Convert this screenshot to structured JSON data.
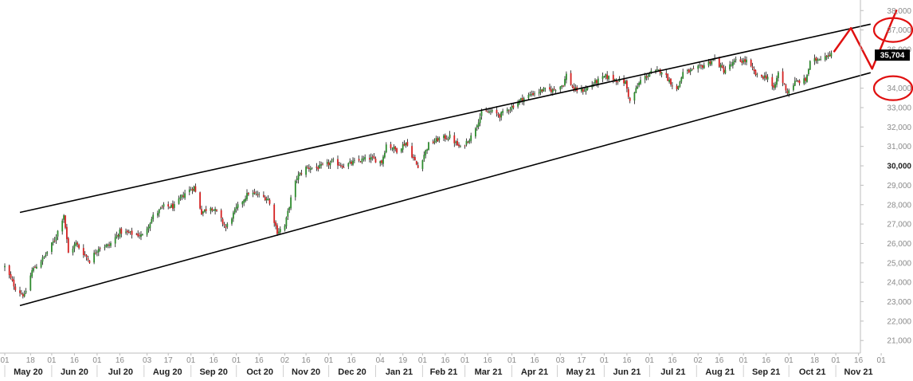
{
  "chart_data": {
    "type": "candlestick",
    "title": "",
    "xlabel": "",
    "ylabel": "",
    "ylim": [
      20500,
      38200
    ],
    "date_range": [
      "2020-05-01",
      "2021-11-30"
    ],
    "y_ticks": [
      {
        "value": 21000,
        "label": "21,000"
      },
      {
        "value": 22000,
        "label": "22,000"
      },
      {
        "value": 23000,
        "label": "23,000"
      },
      {
        "value": 24000,
        "label": "24,000"
      },
      {
        "value": 25000,
        "label": "25,000"
      },
      {
        "value": 26000,
        "label": "26,000"
      },
      {
        "value": 27000,
        "label": "27,000"
      },
      {
        "value": 28000,
        "label": "28,000"
      },
      {
        "value": 29000,
        "label": "29,000"
      },
      {
        "value": 30000,
        "label": "30,000",
        "major": true
      },
      {
        "value": 31000,
        "label": "31,000"
      },
      {
        "value": 32000,
        "label": "32,000"
      },
      {
        "value": 33000,
        "label": "33,000"
      },
      {
        "value": 34000,
        "label": "34,000"
      },
      {
        "value": 36000,
        "label": "36,000"
      },
      {
        "value": 37000,
        "label": "37,000"
      },
      {
        "value": 38000,
        "label": "38,000"
      }
    ],
    "last_value": {
      "value": 35704,
      "label": "35,704"
    },
    "months": [
      {
        "label": "May 20",
        "date": "2020-05-01"
      },
      {
        "label": "Jun 20",
        "date": "2020-06-01"
      },
      {
        "label": "Jul 20",
        "date": "2020-07-01"
      },
      {
        "label": "Aug 20",
        "date": "2020-08-01"
      },
      {
        "label": "Sep 20",
        "date": "2020-09-01"
      },
      {
        "label": "Oct 20",
        "date": "2020-10-01"
      },
      {
        "label": "Nov 20",
        "date": "2020-11-01"
      },
      {
        "label": "Dec 20",
        "date": "2020-12-01"
      },
      {
        "label": "Jan 21",
        "date": "2021-01-01"
      },
      {
        "label": "Feb 21",
        "date": "2021-02-01"
      },
      {
        "label": "Mar 21",
        "date": "2021-03-01"
      },
      {
        "label": "Apr 21",
        "date": "2021-04-01"
      },
      {
        "label": "May 21",
        "date": "2021-05-01"
      },
      {
        "label": "Jun 21",
        "date": "2021-06-01"
      },
      {
        "label": "Jul 21",
        "date": "2021-07-01"
      },
      {
        "label": "Aug 21",
        "date": "2021-08-01"
      },
      {
        "label": "Sep 21",
        "date": "2021-09-01"
      },
      {
        "label": "Oct 21",
        "date": "2021-10-01"
      },
      {
        "label": "Nov 21",
        "date": "2021-11-01"
      }
    ],
    "day_ticks": [
      {
        "label": "01",
        "date": "2020-05-01"
      },
      {
        "label": "18",
        "date": "2020-05-18"
      },
      {
        "label": "01",
        "date": "2020-06-01"
      },
      {
        "label": "16",
        "date": "2020-06-16"
      },
      {
        "label": "01",
        "date": "2020-07-01"
      },
      {
        "label": "16",
        "date": "2020-07-16"
      },
      {
        "label": "03",
        "date": "2020-08-03"
      },
      {
        "label": "17",
        "date": "2020-08-17"
      },
      {
        "label": "01",
        "date": "2020-09-01"
      },
      {
        "label": "16",
        "date": "2020-09-16"
      },
      {
        "label": "01",
        "date": "2020-10-01"
      },
      {
        "label": "16",
        "date": "2020-10-16"
      },
      {
        "label": "02",
        "date": "2020-11-02"
      },
      {
        "label": "16",
        "date": "2020-11-16"
      },
      {
        "label": "01",
        "date": "2020-12-01"
      },
      {
        "label": "16",
        "date": "2020-12-16"
      },
      {
        "label": "04",
        "date": "2021-01-04"
      },
      {
        "label": "19",
        "date": "2021-01-19"
      },
      {
        "label": "01",
        "date": "2021-02-01"
      },
      {
        "label": "16",
        "date": "2021-02-16"
      },
      {
        "label": "01",
        "date": "2021-03-01"
      },
      {
        "label": "16",
        "date": "2021-03-16"
      },
      {
        "label": "01",
        "date": "2021-04-01"
      },
      {
        "label": "16",
        "date": "2021-04-16"
      },
      {
        "label": "03",
        "date": "2021-05-03"
      },
      {
        "label": "17",
        "date": "2021-05-17"
      },
      {
        "label": "01",
        "date": "2021-06-01"
      },
      {
        "label": "16",
        "date": "2021-06-16"
      },
      {
        "label": "01",
        "date": "2021-07-01"
      },
      {
        "label": "16",
        "date": "2021-07-16"
      },
      {
        "label": "02",
        "date": "2021-08-02"
      },
      {
        "label": "16",
        "date": "2021-08-16"
      },
      {
        "label": "01",
        "date": "2021-09-01"
      },
      {
        "label": "16",
        "date": "2021-09-16"
      },
      {
        "label": "01",
        "date": "2021-10-01"
      },
      {
        "label": "18",
        "date": "2021-10-18"
      },
      {
        "label": "01",
        "date": "2021-11-01"
      },
      {
        "label": "16",
        "date": "2021-11-16"
      },
      {
        "label": "01",
        "date": "2021-12-01"
      },
      {
        "label": "16",
        "date": "2021-12-16"
      }
    ],
    "path_points": [
      [
        "2020-05-01",
        24800
      ],
      [
        "2020-05-08",
        23700
      ],
      [
        "2020-05-14",
        23300
      ],
      [
        "2020-05-19",
        24600
      ],
      [
        "2020-05-27",
        25300
      ],
      [
        "2020-06-03",
        26200
      ],
      [
        "2020-06-09",
        27500
      ],
      [
        "2020-06-12",
        25500
      ],
      [
        "2020-06-17",
        26000
      ],
      [
        "2020-06-26",
        25100
      ],
      [
        "2020-07-02",
        25800
      ],
      [
        "2020-07-09",
        25900
      ],
      [
        "2020-07-16",
        26600
      ],
      [
        "2020-07-24",
        26500
      ],
      [
        "2020-07-31",
        26400
      ],
      [
        "2020-08-07",
        27400
      ],
      [
        "2020-08-14",
        27900
      ],
      [
        "2020-08-21",
        27900
      ],
      [
        "2020-08-28",
        28600
      ],
      [
        "2020-09-03",
        28900
      ],
      [
        "2020-09-08",
        27600
      ],
      [
        "2020-09-14",
        27900
      ],
      [
        "2020-09-18",
        27600
      ],
      [
        "2020-09-24",
        26800
      ],
      [
        "2020-10-01",
        27800
      ],
      [
        "2020-10-09",
        28600
      ],
      [
        "2020-10-15",
        28500
      ],
      [
        "2020-10-22",
        28300
      ],
      [
        "2020-10-28",
        26600
      ],
      [
        "2020-11-02",
        26900
      ],
      [
        "2020-11-06",
        28300
      ],
      [
        "2020-11-10",
        29400
      ],
      [
        "2020-11-16",
        29900
      ],
      [
        "2020-11-24",
        29900
      ],
      [
        "2020-12-04",
        30200
      ],
      [
        "2020-12-11",
        30000
      ],
      [
        "2020-12-18",
        30200
      ],
      [
        "2020-12-28",
        30400
      ],
      [
        "2021-01-05",
        30200
      ],
      [
        "2021-01-08",
        31100
      ],
      [
        "2021-01-15",
        30800
      ],
      [
        "2021-01-21",
        31200
      ],
      [
        "2021-01-29",
        29900
      ],
      [
        "2021-02-05",
        31100
      ],
      [
        "2021-02-12",
        31400
      ],
      [
        "2021-02-19",
        31500
      ],
      [
        "2021-02-26",
        30900
      ],
      [
        "2021-03-05",
        31500
      ],
      [
        "2021-03-12",
        32700
      ],
      [
        "2021-03-18",
        32800
      ],
      [
        "2021-03-24",
        32600
      ],
      [
        "2021-03-31",
        33000
      ],
      [
        "2021-04-07",
        33400
      ],
      [
        "2021-04-14",
        33700
      ],
      [
        "2021-04-21",
        33900
      ],
      [
        "2021-04-28",
        33900
      ],
      [
        "2021-05-05",
        34200
      ],
      [
        "2021-05-07",
        34700
      ],
      [
        "2021-05-12",
        33900
      ],
      [
        "2021-05-19",
        33900
      ],
      [
        "2021-05-26",
        34300
      ],
      [
        "2021-06-02",
        34600
      ],
      [
        "2021-06-10",
        34400
      ],
      [
        "2021-06-15",
        34300
      ],
      [
        "2021-06-18",
        33300
      ],
      [
        "2021-06-25",
        34400
      ],
      [
        "2021-07-02",
        34800
      ],
      [
        "2021-07-09",
        34900
      ],
      [
        "2021-07-19",
        33900
      ],
      [
        "2021-07-23",
        34800
      ],
      [
        "2021-07-30",
        34900
      ],
      [
        "2021-08-06",
        35200
      ],
      [
        "2021-08-13",
        35500
      ],
      [
        "2021-08-19",
        34900
      ],
      [
        "2021-08-27",
        35400
      ],
      [
        "2021-09-03",
        35400
      ],
      [
        "2021-09-10",
        34600
      ],
      [
        "2021-09-17",
        34600
      ],
      [
        "2021-09-21",
        33900
      ],
      [
        "2021-09-24",
        34800
      ],
      [
        "2021-09-30",
        33800
      ],
      [
        "2021-10-05",
        34300
      ],
      [
        "2021-10-12",
        34400
      ],
      [
        "2021-10-15",
        35300
      ],
      [
        "2021-10-22",
        35600
      ],
      [
        "2021-10-29",
        35800
      ]
    ],
    "channel": {
      "upper": [
        [
          "2020-05-11",
          27600
        ],
        [
          "2021-11-24",
          37300
        ]
      ],
      "lower": [
        [
          "2020-05-11",
          22800
        ],
        [
          "2021-11-24",
          34800
        ]
      ]
    },
    "annotations": {
      "projection_path": [
        [
          "2021-10-31",
          35900
        ],
        [
          "2021-11-11",
          37100
        ],
        [
          "2021-11-25",
          35000
        ],
        [
          "2021-12-11",
          38000
        ]
      ],
      "circled_levels": [
        37000,
        34000
      ]
    },
    "colors": {
      "up": "#2e8b2e",
      "down": "#d42020",
      "wick": "#111111",
      "annotation": "#e01010",
      "last_box": "#000000"
    },
    "grid": false,
    "y_axis_position": "right"
  }
}
